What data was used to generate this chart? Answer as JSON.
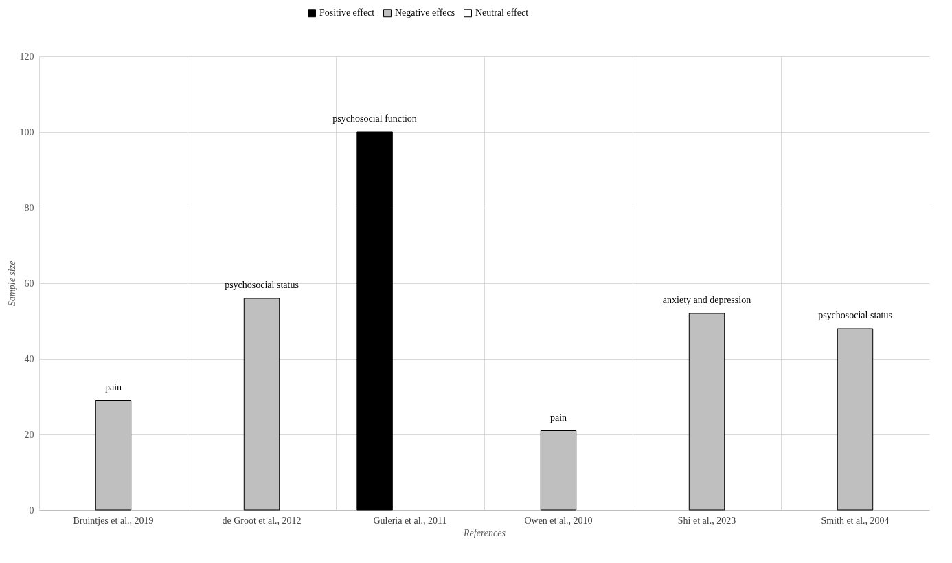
{
  "chart_data": {
    "type": "bar",
    "xlabel": "References",
    "ylabel": "Sample size",
    "categories": [
      "Bruintjes et al., 2019",
      "de Groot et al., 2012",
      "Guleria et al., 2011",
      "Owen et al., 2010",
      "Shi et al., 2023",
      "Smith et al., 2004"
    ],
    "series": [
      {
        "name": "Positive effect",
        "color": "#000000",
        "values": [
          null,
          null,
          100,
          null,
          null,
          null
        ]
      },
      {
        "name": "Negative effecs",
        "color": "#bfbfbf",
        "values": [
          29,
          56,
          null,
          21,
          52,
          48
        ]
      },
      {
        "name": "Neutral effect",
        "color": "#ffffff",
        "values": [
          null,
          null,
          null,
          null,
          null,
          null
        ]
      }
    ],
    "ylim": [
      0,
      120
    ],
    "yticks": [
      0,
      20,
      40,
      60,
      80,
      100,
      120
    ],
    "grid": true,
    "legend": "top",
    "annotations": [
      {
        "text": "pain",
        "x": "Bruintjes et al., 2019",
        "y": 29
      },
      {
        "text": "psychosocial status",
        "x": "de Groot et al., 2012",
        "y": 56
      },
      "psychosocial function",
      {
        "text": "pain",
        "x": "Owen et al., 2010",
        "y": 21
      },
      {
        "text": "anxiety and depression",
        "x": "Shi et al., 2023",
        "y": 52
      },
      {
        "text": "psychosocial status",
        "x": "Smith et al., 2004",
        "y": 48
      }
    ]
  }
}
